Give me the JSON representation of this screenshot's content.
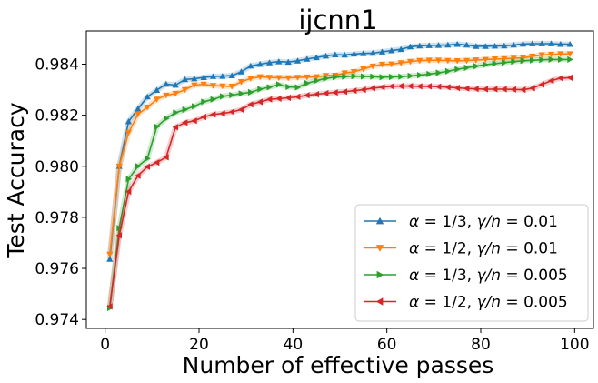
{
  "chart_data": {
    "type": "line",
    "title": "ijcnn1",
    "xlabel": "Number of effective passes",
    "ylabel": "Test Accuracy",
    "xlim": [
      -4,
      104
    ],
    "ylim": [
      0.97365,
      0.9853
    ],
    "xticks": [
      0,
      20,
      40,
      60,
      80,
      100
    ],
    "xtick_labels": [
      "0",
      "20",
      "40",
      "60",
      "80",
      "100"
    ],
    "yticks": [
      0.974,
      0.976,
      0.978,
      0.98,
      0.982,
      0.984
    ],
    "ytick_labels": [
      "0.974",
      "0.976",
      "0.978",
      "0.980",
      "0.982",
      "0.984"
    ],
    "grid": false,
    "legend_position": "lower-right",
    "x": [
      1,
      3,
      5,
      7,
      9,
      11,
      13,
      15,
      17,
      19,
      21,
      23,
      25,
      27,
      29,
      31,
      33,
      35,
      37,
      39,
      41,
      43,
      45,
      47,
      49,
      51,
      53,
      55,
      57,
      59,
      61,
      63,
      65,
      67,
      69,
      71,
      73,
      75,
      77,
      79,
      81,
      83,
      85,
      87,
      89,
      91,
      93,
      95,
      97,
      99
    ],
    "series": [
      {
        "name": "α = 1/3, γ/n = 0.01",
        "legend_math": {
          "sym": "α",
          "frac": "1/3",
          "gamma": "γ",
          "slash_n": "/n",
          "value": "0.01"
        },
        "color": "#1f77b4",
        "marker": "triangle-up",
        "values": [
          0.97636,
          0.98,
          0.98175,
          0.98225,
          0.98272,
          0.98298,
          0.98322,
          0.98318,
          0.9834,
          0.98343,
          0.98348,
          0.98352,
          0.98353,
          0.98355,
          0.9837,
          0.98393,
          0.984,
          0.98406,
          0.9841,
          0.98408,
          0.98413,
          0.9842,
          0.98426,
          0.98432,
          0.98437,
          0.98436,
          0.9844,
          0.98442,
          0.98443,
          0.98448,
          0.98453,
          0.98458,
          0.98468,
          0.98472,
          0.98473,
          0.98474,
          0.98475,
          0.98478,
          0.98475,
          0.9847,
          0.9847,
          0.98471,
          0.98472,
          0.98475,
          0.98479,
          0.9848,
          0.9848,
          0.9848,
          0.98478,
          0.98478
        ]
      },
      {
        "name": "α = 1/2, γ/n = 0.01",
        "legend_math": {
          "sym": "α",
          "frac": "1/2",
          "gamma": "γ",
          "slash_n": "/n",
          "value": "0.01"
        },
        "color": "#ff7f0e",
        "marker": "triangle-down",
        "values": [
          0.97655,
          0.98,
          0.98132,
          0.98204,
          0.98231,
          0.98262,
          0.98278,
          0.98285,
          0.983,
          0.98318,
          0.98321,
          0.98316,
          0.98314,
          0.98313,
          0.98331,
          0.98344,
          0.9835,
          0.98348,
          0.98347,
          0.98346,
          0.98348,
          0.98349,
          0.9835,
          0.98355,
          0.98356,
          0.98365,
          0.9837,
          0.98381,
          0.98392,
          0.98399,
          0.984,
          0.98405,
          0.9841,
          0.98414,
          0.98415,
          0.98415,
          0.98414,
          0.98413,
          0.98414,
          0.98416,
          0.98418,
          0.9842,
          0.98421,
          0.98423,
          0.98425,
          0.98431,
          0.98436,
          0.98438,
          0.9844,
          0.9844
        ]
      },
      {
        "name": "α = 1/3, γ/n = 0.005",
        "legend_math": {
          "sym": "α",
          "frac": "1/3",
          "gamma": "γ",
          "slash_n": "/n",
          "value": "0.005"
        },
        "color": "#2ca02c",
        "marker": "triangle-right",
        "values": [
          0.97445,
          0.97758,
          0.9795,
          0.98,
          0.9803,
          0.98155,
          0.98187,
          0.9821,
          0.98222,
          0.98235,
          0.98253,
          0.98262,
          0.98274,
          0.98279,
          0.98285,
          0.9829,
          0.98302,
          0.9831,
          0.9832,
          0.98311,
          0.98309,
          0.98325,
          0.98335,
          0.98344,
          0.98349,
          0.98351,
          0.98353,
          0.98352,
          0.98351,
          0.98349,
          0.9835,
          0.98351,
          0.98354,
          0.98357,
          0.98361,
          0.98366,
          0.98372,
          0.9838,
          0.98386,
          0.98392,
          0.98398,
          0.98402,
          0.98406,
          0.9841,
          0.98413,
          0.98415,
          0.98417,
          0.98418,
          0.98418,
          0.98418
        ]
      },
      {
        "name": "α = 1/2, γ/n = 0.005",
        "legend_math": {
          "sym": "α",
          "frac": "1/2",
          "gamma": "γ",
          "slash_n": "/n",
          "value": "0.005"
        },
        "color": "#d62728",
        "marker": "triangle-left",
        "values": [
          0.97451,
          0.97729,
          0.97901,
          0.97963,
          0.97998,
          0.98015,
          0.98035,
          0.98153,
          0.98171,
          0.98178,
          0.98193,
          0.98203,
          0.98207,
          0.98213,
          0.98222,
          0.98242,
          0.98252,
          0.98262,
          0.98265,
          0.98268,
          0.98272,
          0.98278,
          0.98282,
          0.98286,
          0.98289,
          0.98292,
          0.98296,
          0.983,
          0.98306,
          0.9831,
          0.98313,
          0.98314,
          0.98314,
          0.98313,
          0.98313,
          0.98312,
          0.9831,
          0.98307,
          0.98305,
          0.98303,
          0.98302,
          0.98302,
          0.98302,
          0.98301,
          0.983,
          0.98306,
          0.9832,
          0.98335,
          0.98345,
          0.98347
        ]
      }
    ]
  }
}
